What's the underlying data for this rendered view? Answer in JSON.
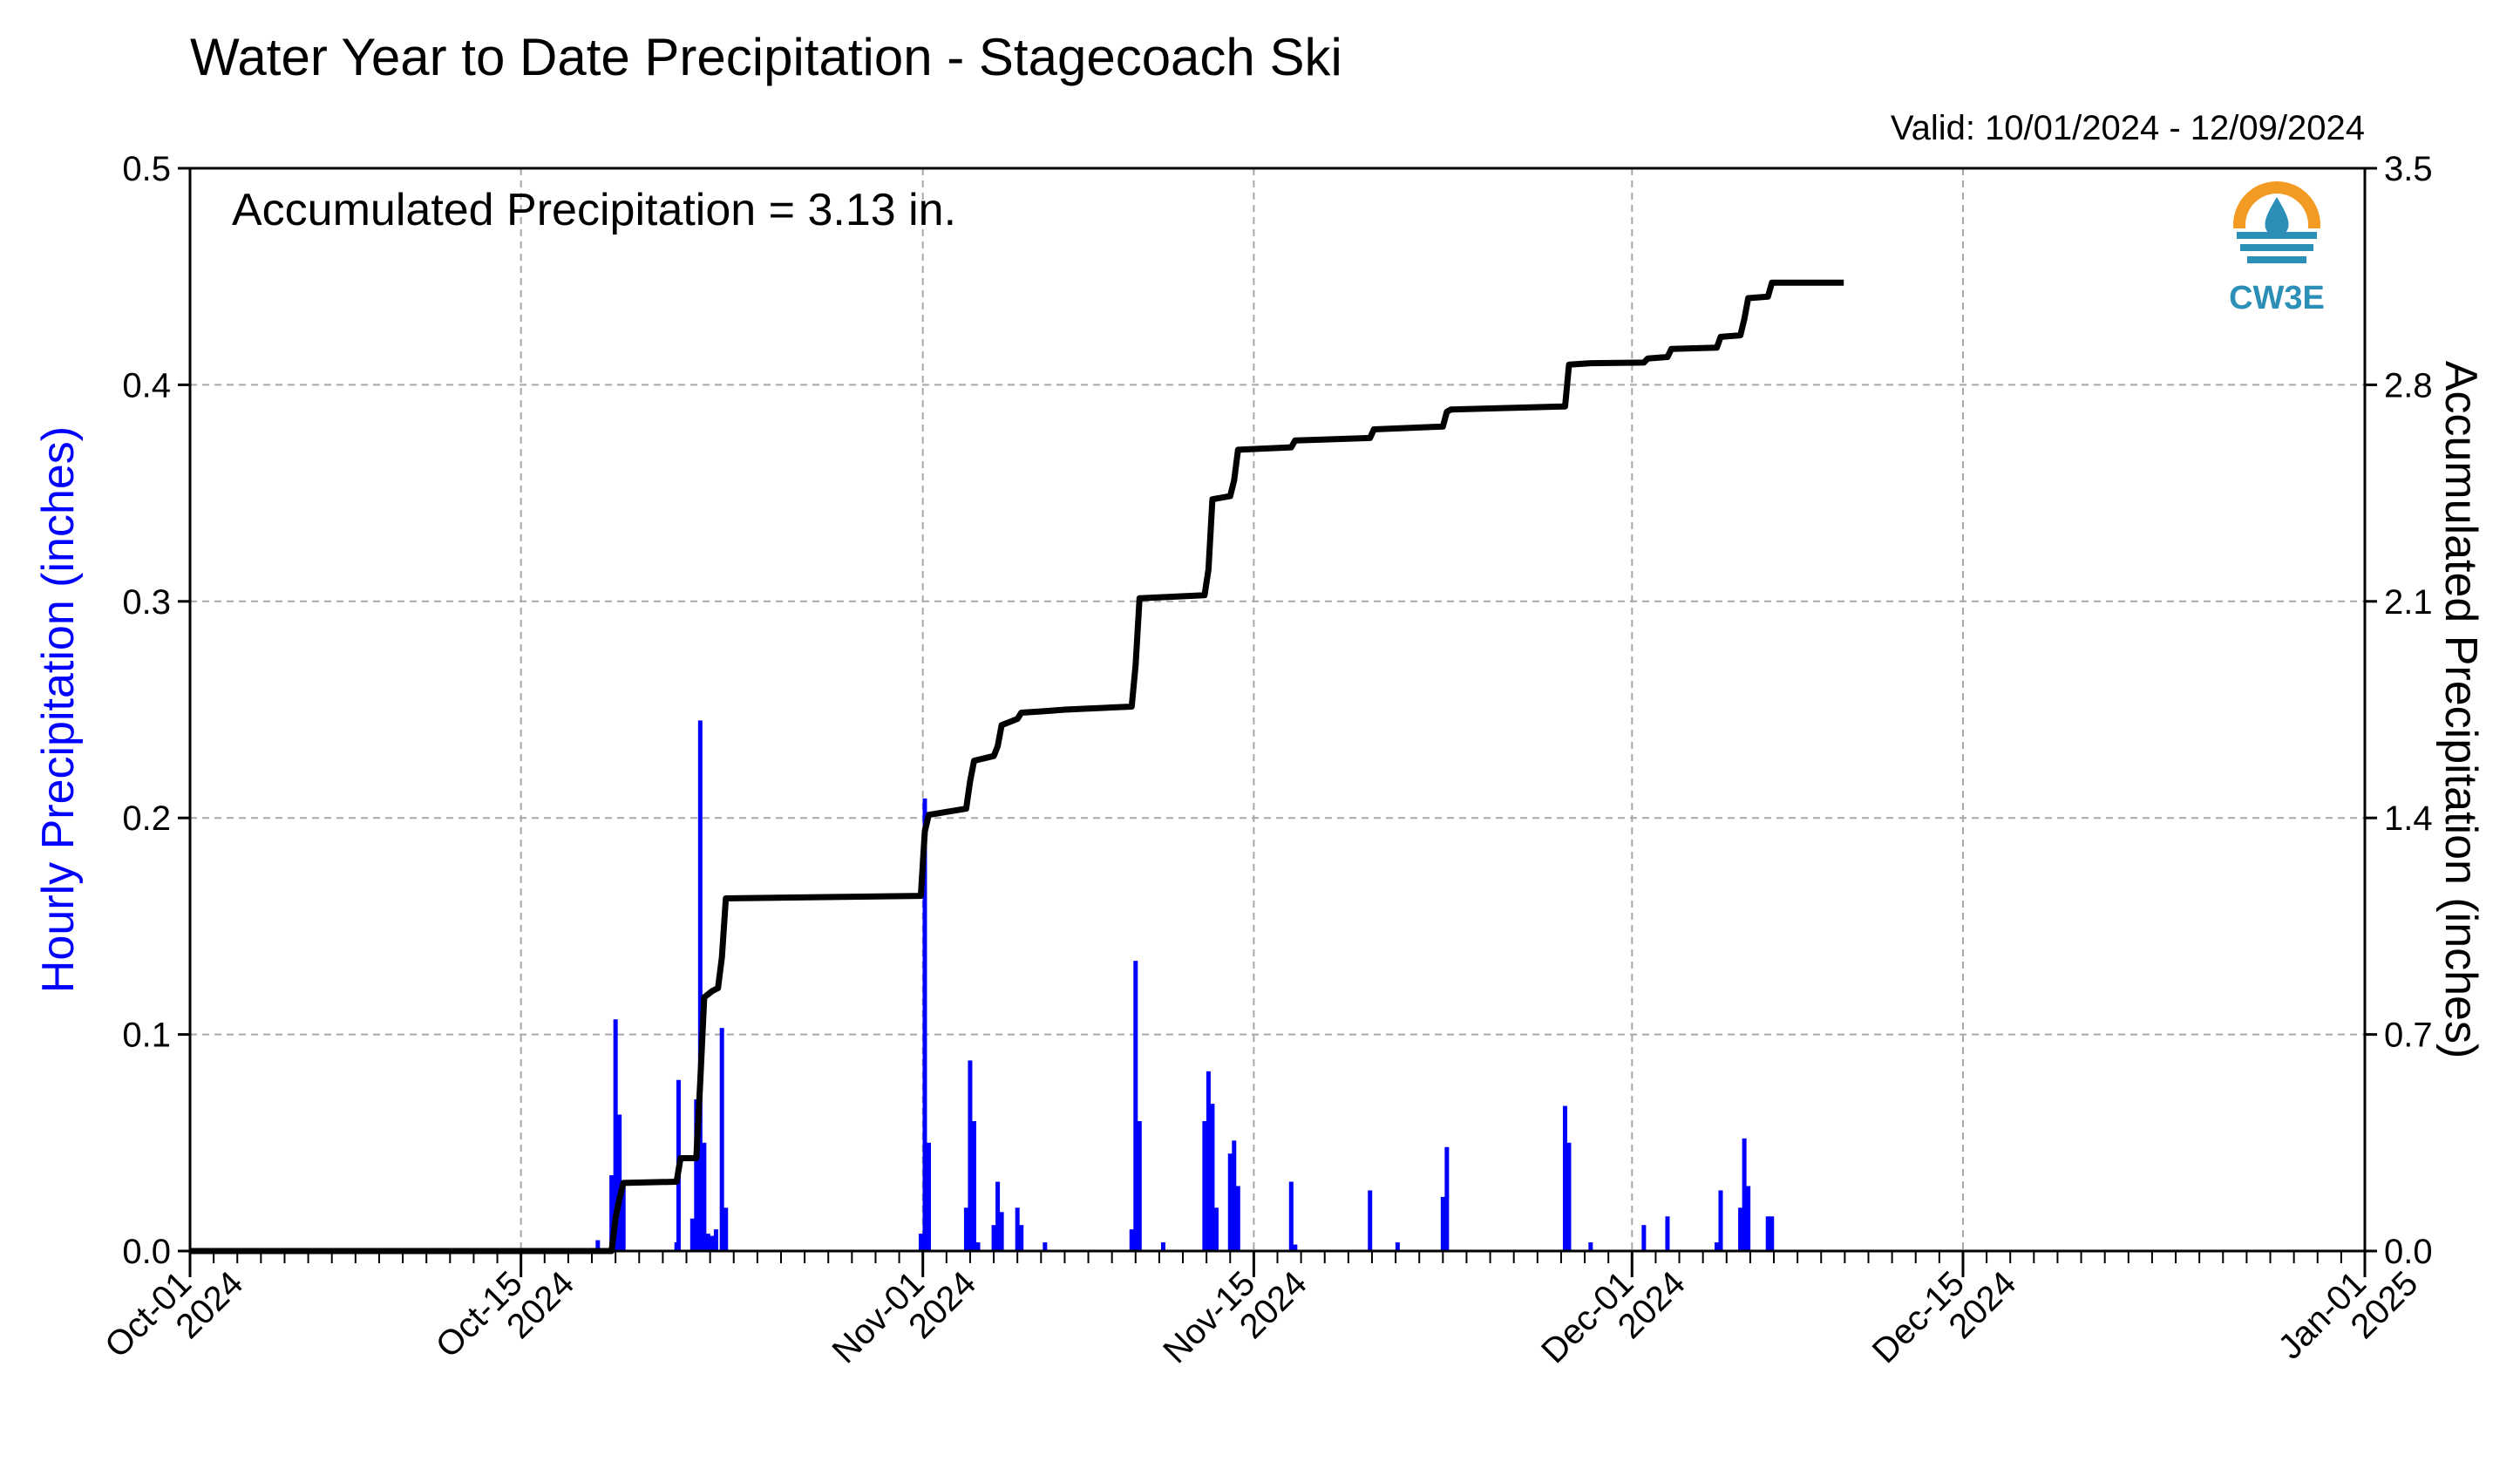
{
  "chart_data": {
    "type": "bar",
    "title": "Water Year to Date Precipitation - Stagecoach Ski",
    "valid_label": "Valid: 10/01/2024 - 12/09/2024",
    "annotation": "Accumulated Precipitation = 3.13 in.",
    "ylabel": "Hourly Precipitation (inches)",
    "y2label": "Accumulated Precipitation (inches)",
    "ylim": [
      0,
      0.5
    ],
    "y2lim": [
      0,
      3.5
    ],
    "y_ticks": [
      "0.0",
      "0.1",
      "0.2",
      "0.3",
      "0.4",
      "0.5"
    ],
    "y2_ticks": [
      "0.0",
      "0.7",
      "1.4",
      "2.1",
      "2.8",
      "3.5"
    ],
    "xlim": [
      "2024-10-01",
      "2025-01-01"
    ],
    "x_ticks": [
      {
        "date": "2024-10-01",
        "line1": "Oct-01",
        "line2": "2024"
      },
      {
        "date": "2024-10-15",
        "line1": "Oct-15",
        "line2": "2024"
      },
      {
        "date": "2024-11-01",
        "line1": "Nov-01",
        "line2": "2024"
      },
      {
        "date": "2024-11-15",
        "line1": "Nov-15",
        "line2": "2024"
      },
      {
        "date": "2024-12-01",
        "line1": "Dec-01",
        "line2": "2024"
      },
      {
        "date": "2024-12-15",
        "line1": "Dec-15",
        "line2": "2024"
      },
      {
        "date": "2025-01-01",
        "line1": "Jan-01",
        "line2": "2025"
      }
    ],
    "grid": true,
    "colors": {
      "hourly": "#0000ff",
      "accumulated": "#000000",
      "grid": "#a8a8a8"
    },
    "series": [
      {
        "name": "Hourly Precipitation",
        "type": "bar",
        "axis": "left",
        "points": [
          [
            "2024-10-18T06:00",
            0.005
          ],
          [
            "2024-10-18T20:00",
            0.035
          ],
          [
            "2024-10-19T00:00",
            0.107
          ],
          [
            "2024-10-19T04:00",
            0.063
          ],
          [
            "2024-10-19T08:00",
            0.03
          ],
          [
            "2024-10-21T14:00",
            0.004
          ],
          [
            "2024-10-21T16:00",
            0.079
          ],
          [
            "2024-10-22T06:00",
            0.015
          ],
          [
            "2024-10-22T10:00",
            0.07
          ],
          [
            "2024-10-22T14:00",
            0.245
          ],
          [
            "2024-10-22T18:00",
            0.05
          ],
          [
            "2024-10-22T22:00",
            0.008
          ],
          [
            "2024-10-23T02:00",
            0.007
          ],
          [
            "2024-10-23T06:00",
            0.01
          ],
          [
            "2024-10-23T12:00",
            0.103
          ],
          [
            "2024-10-23T16:00",
            0.02
          ],
          [
            "2024-10-31T22:00",
            0.008
          ],
          [
            "2024-11-01T02:00",
            0.209
          ],
          [
            "2024-11-01T06:00",
            0.05
          ],
          [
            "2024-11-02T20:00",
            0.02
          ],
          [
            "2024-11-03T00:00",
            0.088
          ],
          [
            "2024-11-03T04:00",
            0.06
          ],
          [
            "2024-11-03T08:00",
            0.004
          ],
          [
            "2024-11-04T00:00",
            0.012
          ],
          [
            "2024-11-04T04:00",
            0.032
          ],
          [
            "2024-11-04T08:00",
            0.018
          ],
          [
            "2024-11-05T00:00",
            0.02
          ],
          [
            "2024-11-05T04:00",
            0.012
          ],
          [
            "2024-11-06T04:00",
            0.004
          ],
          [
            "2024-11-09T20:00",
            0.01
          ],
          [
            "2024-11-10T00:00",
            0.134
          ],
          [
            "2024-11-10T04:00",
            0.06
          ],
          [
            "2024-11-11T04:00",
            0.004
          ],
          [
            "2024-11-12T22:00",
            0.06
          ],
          [
            "2024-11-13T02:00",
            0.083
          ],
          [
            "2024-11-13T06:00",
            0.068
          ],
          [
            "2024-11-13T10:00",
            0.02
          ],
          [
            "2024-11-14T00:00",
            0.045
          ],
          [
            "2024-11-14T04:00",
            0.051
          ],
          [
            "2024-11-14T08:00",
            0.03
          ],
          [
            "2024-11-16T14:00",
            0.032
          ],
          [
            "2024-11-16T18:00",
            0.003
          ],
          [
            "2024-11-19T22:00",
            0.028
          ],
          [
            "2024-11-21T02:00",
            0.004
          ],
          [
            "2024-11-23T00:00",
            0.025
          ],
          [
            "2024-11-23T04:00",
            0.048
          ],
          [
            "2024-11-28T04:00",
            0.067
          ],
          [
            "2024-11-28T08:00",
            0.05
          ],
          [
            "2024-11-29T06:00",
            0.004
          ],
          [
            "2024-12-01T12:00",
            0.012
          ],
          [
            "2024-12-02T12:00",
            0.016
          ],
          [
            "2024-12-04T14:00",
            0.004
          ],
          [
            "2024-12-04T18:00",
            0.028
          ],
          [
            "2024-12-05T14:00",
            0.02
          ],
          [
            "2024-12-05T18:00",
            0.052
          ],
          [
            "2024-12-05T22:00",
            0.03
          ],
          [
            "2024-12-06T18:00",
            0.016
          ],
          [
            "2024-12-06T22:00",
            0.016
          ]
        ]
      },
      {
        "name": "Accumulated Precipitation",
        "type": "line",
        "axis": "right",
        "points": [
          [
            "2024-10-01T00:00",
            0.0
          ],
          [
            "2024-10-18T20:00",
            0.0
          ],
          [
            "2024-10-19T00:00",
            0.107
          ],
          [
            "2024-10-19T04:00",
            0.17
          ],
          [
            "2024-10-19T08:00",
            0.22
          ],
          [
            "2024-10-21T14:00",
            0.224
          ],
          [
            "2024-10-21T18:00",
            0.3
          ],
          [
            "2024-10-22T10:00",
            0.3
          ],
          [
            "2024-10-22T14:00",
            0.545
          ],
          [
            "2024-10-22T18:00",
            0.82
          ],
          [
            "2024-10-23T02:00",
            0.84
          ],
          [
            "2024-10-23T08:00",
            0.85
          ],
          [
            "2024-10-23T12:00",
            0.95
          ],
          [
            "2024-10-23T16:00",
            1.14
          ],
          [
            "2024-10-31T22:00",
            1.148
          ],
          [
            "2024-11-01T02:00",
            1.357
          ],
          [
            "2024-11-01T06:00",
            1.41
          ],
          [
            "2024-11-02T20:00",
            1.43
          ],
          [
            "2024-11-03T00:00",
            1.518
          ],
          [
            "2024-11-03T04:00",
            1.585
          ],
          [
            "2024-11-04T00:00",
            1.6
          ],
          [
            "2024-11-04T04:00",
            1.632
          ],
          [
            "2024-11-04T08:00",
            1.7
          ],
          [
            "2024-11-05T00:00",
            1.72
          ],
          [
            "2024-11-05T04:00",
            1.74
          ],
          [
            "2024-11-06T04:00",
            1.745
          ],
          [
            "2024-11-07T00:00",
            1.75
          ],
          [
            "2024-11-09T20:00",
            1.76
          ],
          [
            "2024-11-10T00:00",
            1.894
          ],
          [
            "2024-11-10T04:00",
            2.11
          ],
          [
            "2024-11-12T22:00",
            2.12
          ],
          [
            "2024-11-13T02:00",
            2.203
          ],
          [
            "2024-11-13T06:00",
            2.43
          ],
          [
            "2024-11-14T00:00",
            2.44
          ],
          [
            "2024-11-14T04:00",
            2.491
          ],
          [
            "2024-11-14T08:00",
            2.59
          ],
          [
            "2024-11-16T14:00",
            2.598
          ],
          [
            "2024-11-16T18:00",
            2.62
          ],
          [
            "2024-11-19T22:00",
            2.628
          ],
          [
            "2024-11-20T02:00",
            2.656
          ],
          [
            "2024-11-23T00:00",
            2.665
          ],
          [
            "2024-11-23T04:00",
            2.713
          ],
          [
            "2024-11-23T08:00",
            2.72
          ],
          [
            "2024-11-28T04:00",
            2.73
          ],
          [
            "2024-11-28T08:00",
            2.865
          ],
          [
            "2024-11-29T06:00",
            2.87
          ],
          [
            "2024-12-01T12:00",
            2.872
          ],
          [
            "2024-12-01T16:00",
            2.885
          ],
          [
            "2024-12-02T12:00",
            2.89
          ],
          [
            "2024-12-02T16:00",
            2.916
          ],
          [
            "2024-12-04T14:00",
            2.92
          ],
          [
            "2024-12-04T18:00",
            2.955
          ],
          [
            "2024-12-05T14:00",
            2.96
          ],
          [
            "2024-12-05T18:00",
            3.012
          ],
          [
            "2024-12-05T22:00",
            3.08
          ],
          [
            "2024-12-06T18:00",
            3.085
          ],
          [
            "2024-12-06T22:00",
            3.13
          ],
          [
            "2024-12-09T23:00",
            3.13
          ]
        ]
      }
    ]
  },
  "logo": {
    "label": "CW3E",
    "color_orange": "#f39a23",
    "color_blue": "#2b8fb7"
  }
}
